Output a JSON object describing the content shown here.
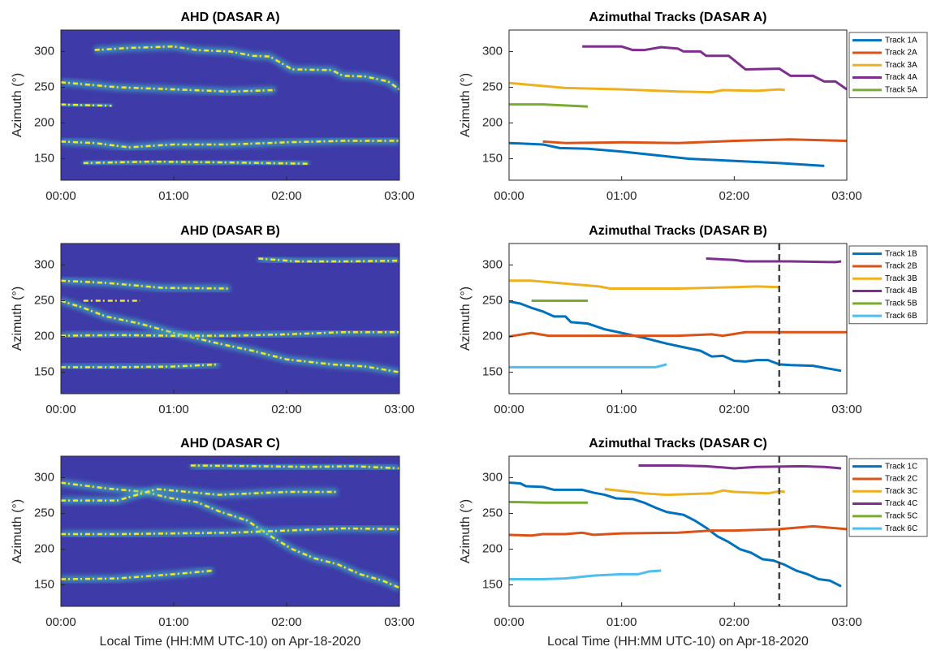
{
  "chart_data": [
    {
      "type": "heatmap",
      "title": "AHD (DASAR A)",
      "ylabel": "Azimuth (°)",
      "background": "#3e3aa8",
      "glow_color": "#3fb7c2",
      "xlim": [
        0,
        3
      ],
      "ylim": [
        120,
        330
      ],
      "xticks": [
        {
          "value": 0,
          "label": "00:00"
        },
        {
          "value": 1,
          "label": "01:00"
        },
        {
          "value": 2,
          "label": "02:00"
        },
        {
          "value": 3,
          "label": "03:00"
        }
      ],
      "yticks": [
        150,
        200,
        250,
        300
      ],
      "series": [
        {
          "color": "#f5e62b",
          "x": [
            0.3,
            0.6,
            1.0,
            1.2,
            1.5,
            1.7,
            1.85,
            2.05,
            2.4,
            2.5,
            2.7,
            2.9,
            3.0
          ],
          "values": [
            302,
            305,
            307,
            302,
            300,
            294,
            293,
            275,
            274,
            266,
            265,
            258,
            247
          ]
        },
        {
          "color": "#f5e62b",
          "x": [
            0,
            0.5,
            1.0,
            1.5,
            1.9
          ],
          "values": [
            257,
            250,
            247,
            244,
            246
          ]
        },
        {
          "color": "#f5e62b",
          "x": [
            0,
            0.2,
            0.45
          ],
          "values": [
            226,
            225,
            224
          ]
        },
        {
          "color": "#f5e62b",
          "x": [
            0,
            0.3,
            0.6,
            1.0,
            1.5,
            2.0,
            2.5,
            3.0
          ],
          "values": [
            174,
            172,
            166,
            170,
            170,
            173,
            175,
            175
          ]
        },
        {
          "color": "#f5e62b",
          "x": [
            0.2,
            0.8,
            1.4,
            2.2
          ],
          "values": [
            144,
            146,
            145,
            143
          ]
        }
      ]
    },
    {
      "type": "line",
      "title": "Azimuthal Tracks (DASAR A)",
      "ylabel": "Azimuth (°)",
      "legend": "outside-right",
      "xlim": [
        0,
        3
      ],
      "ylim": [
        120,
        330
      ],
      "xticks": [
        {
          "value": 0,
          "label": "00:00"
        },
        {
          "value": 1,
          "label": "01:00"
        },
        {
          "value": 2,
          "label": "02:00"
        },
        {
          "value": 3,
          "label": "03:00"
        }
      ],
      "yticks": [
        150,
        200,
        250,
        300
      ],
      "series": [
        {
          "name": "Track 1A",
          "color": "#0072bd",
          "x": [
            0,
            0.3,
            0.45,
            0.7,
            1.0,
            1.3,
            1.6,
            2.0,
            2.4,
            2.8
          ],
          "values": [
            172,
            170,
            165,
            164,
            160,
            155,
            150,
            147,
            144,
            140
          ]
        },
        {
          "name": "Track 2A",
          "color": "#d95319",
          "x": [
            0.3,
            0.5,
            1.0,
            1.5,
            2.0,
            2.5,
            3.0
          ],
          "values": [
            174,
            172,
            173,
            172,
            175,
            177,
            175
          ]
        },
        {
          "name": "Track 3A",
          "color": "#edb120",
          "x": [
            0,
            0.5,
            1.0,
            1.5,
            1.8,
            1.9,
            2.2,
            2.4,
            2.45
          ],
          "values": [
            256,
            249,
            247,
            244,
            243,
            246,
            245,
            247,
            246
          ]
        },
        {
          "name": "Track 4A",
          "color": "#7e2f8e",
          "x": [
            0.65,
            1.0,
            1.1,
            1.2,
            1.35,
            1.5,
            1.55,
            1.7,
            1.75,
            1.95,
            2.1,
            2.4,
            2.5,
            2.7,
            2.8,
            2.9,
            3.0
          ],
          "values": [
            307,
            307,
            302,
            302,
            306,
            304,
            300,
            300,
            294,
            294,
            275,
            276,
            266,
            266,
            258,
            258,
            247
          ]
        },
        {
          "name": "Track 5A",
          "color": "#77ac30",
          "x": [
            0,
            0.3,
            0.7
          ],
          "values": [
            226,
            226,
            223
          ]
        }
      ]
    },
    {
      "type": "heatmap",
      "title": "AHD (DASAR B)",
      "ylabel": "Azimuth (°)",
      "background": "#3e3aa8",
      "glow_color": "#3fb7c2",
      "xlim": [
        0,
        3
      ],
      "ylim": [
        120,
        330
      ],
      "xticks": [
        {
          "value": 0,
          "label": "00:00"
        },
        {
          "value": 1,
          "label": "01:00"
        },
        {
          "value": 2,
          "label": "02:00"
        },
        {
          "value": 3,
          "label": "03:00"
        }
      ],
      "yticks": [
        150,
        200,
        250,
        300
      ],
      "series": [
        {
          "color": "#f5e62b",
          "x": [
            0,
            0.2,
            0.4,
            0.7,
            1.0,
            1.4,
            1.7,
            2.0,
            2.4,
            2.7,
            3.0
          ],
          "values": [
            250,
            240,
            228,
            218,
            205,
            190,
            180,
            168,
            161,
            158,
            150
          ]
        },
        {
          "color": "#f5e62b",
          "x": [
            0,
            0.5,
            1.0,
            1.5,
            2.0,
            2.5,
            3.0
          ],
          "values": [
            201,
            202,
            201,
            201,
            203,
            206,
            206
          ]
        },
        {
          "color": "#f5e62b",
          "x": [
            0,
            0.4,
            0.9,
            1.5
          ],
          "values": [
            278,
            275,
            268,
            267
          ]
        },
        {
          "color": "#f5e62b",
          "x": [
            1.75,
            2.1,
            2.5,
            3.0
          ],
          "values": [
            309,
            305,
            305,
            306
          ]
        },
        {
          "color": "#f5e62b",
          "x": [
            0.2,
            0.7
          ],
          "values": [
            250,
            250
          ]
        },
        {
          "color": "#f5e62b",
          "x": [
            0,
            0.5,
            1.0,
            1.4
          ],
          "values": [
            157,
            157,
            158,
            161
          ]
        }
      ]
    },
    {
      "type": "line",
      "title": "Azimuthal Tracks (DASAR B)",
      "ylabel": "Azimuth (°)",
      "legend": "outside-right",
      "vline": 2.4,
      "xlim": [
        0,
        3
      ],
      "ylim": [
        120,
        330
      ],
      "xticks": [
        {
          "value": 0,
          "label": "00:00"
        },
        {
          "value": 1,
          "label": "01:00"
        },
        {
          "value": 2,
          "label": "02:00"
        },
        {
          "value": 3,
          "label": "03:00"
        }
      ],
      "yticks": [
        150,
        200,
        250,
        300
      ],
      "series": [
        {
          "name": "Track 1B",
          "color": "#0072bd",
          "x": [
            0,
            0.1,
            0.2,
            0.3,
            0.4,
            0.5,
            0.55,
            0.7,
            0.85,
            1.0,
            1.2,
            1.4,
            1.55,
            1.7,
            1.8,
            1.9,
            2.0,
            2.1,
            2.2,
            2.3,
            2.4,
            2.5,
            2.7,
            2.95
          ],
          "values": [
            249,
            246,
            240,
            235,
            228,
            228,
            220,
            218,
            210,
            205,
            198,
            190,
            185,
            180,
            172,
            173,
            166,
            165,
            167,
            167,
            161,
            160,
            159,
            152
          ]
        },
        {
          "name": "Track 2B",
          "color": "#d95319",
          "x": [
            0,
            0.2,
            0.35,
            1.0,
            1.5,
            1.8,
            1.9,
            2.1,
            2.5,
            3.0
          ],
          "values": [
            200,
            205,
            201,
            201,
            201,
            203,
            201,
            206,
            206,
            206
          ]
        },
        {
          "name": "Track 3B",
          "color": "#edb120",
          "x": [
            0,
            0.2,
            0.5,
            0.8,
            0.9,
            1.5,
            2.0,
            2.2,
            2.4
          ],
          "values": [
            278,
            278,
            274,
            270,
            267,
            267,
            269,
            270,
            269
          ]
        },
        {
          "name": "Track 4B",
          "color": "#7e2f8e",
          "x": [
            1.75,
            2.0,
            2.1,
            2.5,
            2.9,
            2.95
          ],
          "values": [
            309,
            307,
            305,
            305,
            304,
            305
          ]
        },
        {
          "name": "Track 5B",
          "color": "#77ac30",
          "x": [
            0.2,
            0.7
          ],
          "values": [
            250,
            250
          ]
        },
        {
          "name": "Track 6B",
          "color": "#4dbeee",
          "x": [
            0,
            0.5,
            1.0,
            1.3,
            1.4
          ],
          "values": [
            157,
            157,
            157,
            157,
            161
          ]
        }
      ]
    },
    {
      "type": "heatmap",
      "title": "AHD (DASAR C)",
      "ylabel": "Azimuth (°)",
      "xlabel": "Local Time (HH:MM UTC-10) on Apr-18-2020",
      "background": "#3e3aa8",
      "glow_color": "#3fb7c2",
      "xlim": [
        0,
        3
      ],
      "ylim": [
        120,
        330
      ],
      "xticks": [
        {
          "value": 0,
          "label": "00:00"
        },
        {
          "value": 1,
          "label": "01:00"
        },
        {
          "value": 2,
          "label": "02:00"
        },
        {
          "value": 3,
          "label": "03:00"
        }
      ],
      "yticks": [
        150,
        200,
        250,
        300
      ],
      "series": [
        {
          "color": "#f5e62b",
          "x": [
            0,
            0.4,
            0.75,
            0.95,
            1.2,
            1.4,
            1.65,
            1.85,
            2.05,
            2.25,
            2.45,
            2.65,
            2.85,
            3.0
          ],
          "values": [
            293,
            285,
            280,
            272,
            266,
            253,
            240,
            219,
            200,
            187,
            179,
            165,
            156,
            146
          ]
        },
        {
          "color": "#f5e62b",
          "x": [
            0,
            0.5,
            1.0,
            1.5,
            2.0,
            2.5,
            3.0
          ],
          "values": [
            221,
            221,
            222,
            223,
            226,
            229,
            228
          ]
        },
        {
          "color": "#f5e62b",
          "x": [
            0,
            0.5,
            0.85,
            1.4,
            2.0,
            2.45
          ],
          "values": [
            268,
            268,
            284,
            276,
            280,
            280
          ]
        },
        {
          "color": "#f5e62b",
          "x": [
            1.15,
            1.75,
            2.2,
            2.6,
            3.0
          ],
          "values": [
            317,
            316,
            315,
            316,
            313
          ]
        },
        {
          "color": "#f5e62b",
          "x": [
            0,
            0.5,
            1.0,
            1.35
          ],
          "values": [
            158,
            159,
            165,
            170
          ]
        }
      ]
    },
    {
      "type": "line",
      "title": "Azimuthal Tracks (DASAR C)",
      "ylabel": "Azimuth (°)",
      "xlabel": "Local Time (HH:MM UTC-10) on Apr-18-2020",
      "legend": "outside-right",
      "vline": 2.4,
      "xlim": [
        0,
        3
      ],
      "ylim": [
        120,
        330
      ],
      "xticks": [
        {
          "value": 0,
          "label": "00:00"
        },
        {
          "value": 1,
          "label": "01:00"
        },
        {
          "value": 2,
          "label": "02:00"
        },
        {
          "value": 3,
          "label": "03:00"
        }
      ],
      "yticks": [
        150,
        200,
        250,
        300
      ],
      "series": [
        {
          "name": "Track 1C",
          "color": "#0072bd",
          "x": [
            0,
            0.1,
            0.15,
            0.3,
            0.4,
            0.65,
            0.75,
            0.85,
            0.95,
            1.1,
            1.2,
            1.3,
            1.4,
            1.55,
            1.65,
            1.75,
            1.85,
            1.95,
            2.05,
            2.15,
            2.25,
            2.35,
            2.45,
            2.55,
            2.65,
            2.75,
            2.85,
            2.95
          ],
          "values": [
            293,
            292,
            288,
            287,
            283,
            283,
            279,
            276,
            271,
            270,
            265,
            258,
            252,
            248,
            240,
            230,
            218,
            210,
            200,
            195,
            186,
            184,
            178,
            170,
            165,
            158,
            156,
            148
          ]
        },
        {
          "name": "Track 2C",
          "color": "#d95319",
          "x": [
            0,
            0.2,
            0.3,
            0.5,
            0.65,
            0.75,
            1.0,
            1.5,
            1.8,
            2.0,
            2.4,
            2.7,
            3.0
          ],
          "values": [
            220,
            219,
            221,
            221,
            223,
            220,
            222,
            223,
            226,
            226,
            228,
            232,
            228
          ]
        },
        {
          "name": "Track 3C",
          "color": "#edb120",
          "x": [
            0.85,
            1.2,
            1.4,
            1.8,
            1.9,
            2.0,
            2.3,
            2.4,
            2.45
          ],
          "values": [
            284,
            278,
            276,
            278,
            282,
            280,
            278,
            281,
            280
          ]
        },
        {
          "name": "Track 4C",
          "color": "#7e2f8e",
          "x": [
            1.15,
            1.5,
            1.75,
            2.0,
            2.2,
            2.6,
            2.8,
            2.95
          ],
          "values": [
            317,
            317,
            316,
            313,
            315,
            316,
            315,
            313
          ]
        },
        {
          "name": "Track 5C",
          "color": "#77ac30",
          "x": [
            0,
            0.3,
            0.7
          ],
          "values": [
            266,
            265,
            265
          ]
        },
        {
          "name": "Track 6C",
          "color": "#4dbeee",
          "x": [
            0,
            0.3,
            0.5,
            0.75,
            1.0,
            1.15,
            1.25,
            1.35
          ],
          "values": [
            158,
            158,
            159,
            163,
            165,
            165,
            169,
            170
          ]
        }
      ]
    }
  ]
}
